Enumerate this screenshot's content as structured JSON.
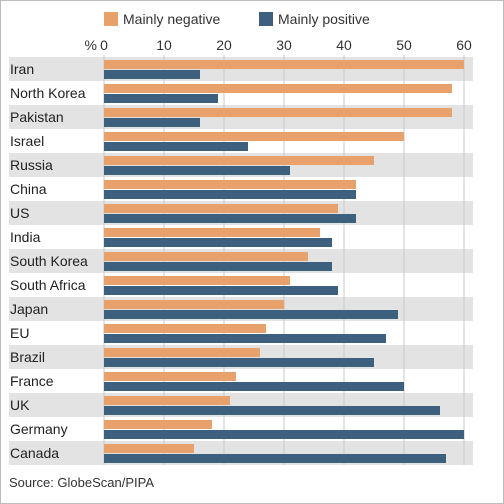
{
  "chart_data": {
    "type": "bar",
    "orientation": "horizontal",
    "unit_label": "%",
    "categories": [
      "Iran",
      "North Korea",
      "Pakistan",
      "Israel",
      "Russia",
      "China",
      "US",
      "India",
      "South Korea",
      "South Africa",
      "Japan",
      "EU",
      "Brazil",
      "France",
      "UK",
      "Germany",
      "Canada"
    ],
    "series": [
      {
        "name": "Mainly negative",
        "color": "#e9a16b",
        "values": [
          60,
          58,
          58,
          50,
          45,
          42,
          39,
          36,
          34,
          31,
          30,
          27,
          26,
          22,
          21,
          18,
          15
        ]
      },
      {
        "name": "Mainly positive",
        "color": "#3d607f",
        "values": [
          16,
          19,
          16,
          24,
          31,
          42,
          42,
          38,
          38,
          39,
          49,
          47,
          45,
          50,
          56,
          60,
          57
        ]
      }
    ],
    "xticks": [
      0,
      10,
      20,
      30,
      40,
      50,
      60
    ],
    "xlim": [
      0,
      61
    ],
    "grid": true,
    "legend_position": "top",
    "band_color": "#e3e3e3"
  },
  "source": "Source: GlobeScan/PIPA"
}
